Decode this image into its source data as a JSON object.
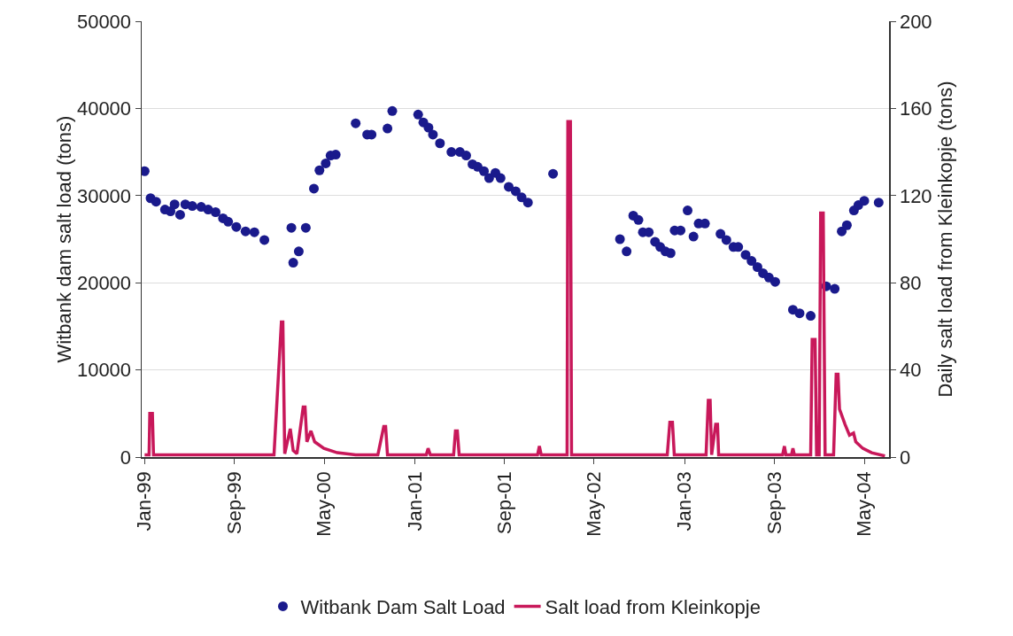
{
  "chart_data": {
    "type": "scatter",
    "ylabel": "Witbank dam salt load (tons)",
    "y2label": "Daily salt load from Kleinkopje (tons)",
    "xlim": [
      "1998-12-24",
      "2004-07-07"
    ],
    "xticks": [
      {
        "value": "1999-01-01",
        "label": "Jan-99"
      },
      {
        "value": "1999-09-01",
        "label": "Sep-99"
      },
      {
        "value": "2000-05-01",
        "label": "May-00"
      },
      {
        "value": "2001-01-01",
        "label": "Jan-01"
      },
      {
        "value": "2001-09-01",
        "label": "Sep-01"
      },
      {
        "value": "2002-05-01",
        "label": "May-02"
      },
      {
        "value": "2003-01-01",
        "label": "Jan-03"
      },
      {
        "value": "2003-09-01",
        "label": "Sep-03"
      },
      {
        "value": "2004-05-01",
        "label": "May-04"
      }
    ],
    "ylim": [
      0,
      50000
    ],
    "yticks": [
      0,
      10000,
      20000,
      30000,
      40000,
      50000
    ],
    "y2lim": [
      0,
      200
    ],
    "y2ticks": [
      0,
      40,
      80,
      120,
      160,
      200
    ],
    "grid": "y",
    "legend": "bottom",
    "series": [
      {
        "name": "Witbank Dam Salt Load",
        "marker": "circle",
        "color": "#1a1a8c",
        "x": [
          "1999-01-01",
          "1999-01-17",
          "1999-02-01",
          "1999-02-25",
          "1999-03-12",
          "1999-03-23",
          "1999-04-07",
          "1999-04-21",
          "1999-05-10",
          "1999-06-03",
          "1999-06-22",
          "1999-07-12",
          "1999-08-01",
          "1999-08-15",
          "1999-09-06",
          "1999-10-01",
          "1999-10-25",
          "1999-11-21",
          "2000-02-02",
          "2000-02-07",
          "2000-02-22",
          "2000-03-12",
          "2000-04-03",
          "2000-04-18",
          "2000-05-05",
          "2000-05-18",
          "2000-06-01",
          "2000-07-25",
          "2000-08-25",
          "2000-09-06",
          "2000-10-19",
          "2000-11-01",
          "2001-01-10",
          "2001-01-24",
          "2001-02-07",
          "2001-02-19",
          "2001-03-10",
          "2001-04-10",
          "2001-05-03",
          "2001-05-20",
          "2001-06-06",
          "2001-06-20",
          "2001-07-07",
          "2001-07-21",
          "2001-08-07",
          "2001-08-21",
          "2001-09-12",
          "2001-10-01",
          "2001-10-17",
          "2001-11-03",
          "2002-01-10",
          "2002-07-10",
          "2002-07-28",
          "2002-08-15",
          "2002-08-29",
          "2002-09-10",
          "2002-09-26",
          "2002-10-13",
          "2002-10-27",
          "2002-11-10",
          "2002-11-24",
          "2002-12-05",
          "2002-12-21",
          "2003-01-09",
          "2003-01-25",
          "2003-02-08",
          "2003-02-25",
          "2003-04-08",
          "2003-04-24",
          "2003-05-13",
          "2003-05-26",
          "2003-06-15",
          "2003-07-01",
          "2003-07-17",
          "2003-08-01",
          "2003-08-17",
          "2003-09-03",
          "2003-10-21",
          "2003-11-08",
          "2003-12-08",
          "2004-01-19",
          "2004-02-11",
          "2004-03-01",
          "2004-03-15",
          "2004-04-03",
          "2004-04-15",
          "2004-05-01",
          "2004-06-09"
        ],
        "values": [
          32800,
          29700,
          29300,
          28400,
          28200,
          29000,
          27800,
          29000,
          28800,
          28700,
          28400,
          28100,
          27400,
          27000,
          26400,
          25900,
          25800,
          24900,
          26300,
          22300,
          23600,
          26300,
          30800,
          32900,
          33700,
          34600,
          34700,
          38300,
          37000,
          37000,
          37700,
          39700,
          39300,
          38400,
          37800,
          37000,
          36000,
          35000,
          35000,
          34600,
          33600,
          33300,
          32800,
          32000,
          32600,
          32000,
          31000,
          30500,
          29800,
          29200,
          32500,
          25000,
          23600,
          27700,
          27200,
          25800,
          25800,
          24700,
          24100,
          23600,
          23400,
          26000,
          26000,
          28300,
          25300,
          26800,
          26800,
          25600,
          24900,
          24100,
          24100,
          23200,
          22500,
          21800,
          21100,
          20600,
          20100,
          16900,
          16500,
          16200,
          19600,
          19300,
          25900,
          26600,
          28300,
          28900,
          29400,
          29200
        ]
      },
      {
        "name": "Salt load from Kleinkopje",
        "type": "line",
        "axis": "y2",
        "line_style": "solid",
        "color": "#c8185a",
        "x": [
          "1999-01-01",
          "1999-01-13",
          "1999-01-15",
          "1999-01-22",
          "1999-01-25",
          "1999-12-17",
          "2000-01-06",
          "2000-01-10",
          "2000-01-15",
          "2000-01-30",
          "2000-02-07",
          "2000-02-17",
          "2000-03-05",
          "2000-03-10",
          "2000-03-15",
          "2000-03-26",
          "2000-04-05",
          "2000-04-30",
          "2000-06-05",
          "2000-07-25",
          "2000-09-23",
          "2000-10-09",
          "2000-10-14",
          "2000-10-19",
          "2001-02-01",
          "2001-02-06",
          "2001-02-12",
          "2001-04-16",
          "2001-04-21",
          "2001-04-26",
          "2001-05-01",
          "2001-11-29",
          "2001-12-04",
          "2001-12-09",
          "2002-02-17",
          "2002-02-19",
          "2002-02-26",
          "2002-03-01",
          "2002-11-15",
          "2002-11-22",
          "2002-11-29",
          "2002-12-04",
          "2003-02-28",
          "2003-03-06",
          "2003-03-11",
          "2003-03-15",
          "2003-03-26",
          "2003-03-31",
          "2003-04-03",
          "2003-09-23",
          "2003-09-28",
          "2003-10-02",
          "2003-10-17",
          "2003-10-21",
          "2003-10-25",
          "2003-12-08",
          "2003-12-12",
          "2003-12-20",
          "2003-12-24",
          "2003-12-31",
          "2004-01-04",
          "2004-01-11",
          "2004-01-16",
          "2004-02-08",
          "2004-02-15",
          "2004-02-20",
          "2004-02-24",
          "2004-03-10",
          "2004-03-22",
          "2004-04-02",
          "2004-04-08",
          "2004-04-27",
          "2004-05-21",
          "2004-06-26"
        ],
        "values": [
          1,
          1,
          20,
          20,
          1,
          1,
          62,
          62,
          1.5,
          13,
          3,
          1.5,
          23,
          23,
          7,
          12,
          7,
          4,
          2,
          1,
          1,
          14,
          14,
          1,
          1,
          4,
          1,
          1,
          12,
          12,
          1,
          1,
          5,
          1,
          1,
          154,
          154,
          1,
          1,
          16,
          16,
          1,
          1,
          26,
          26,
          1,
          15,
          15,
          1,
          1,
          5,
          1,
          1,
          4,
          1,
          1,
          54,
          54,
          1,
          1,
          112,
          112,
          1,
          1,
          38,
          38,
          22,
          15,
          10,
          11,
          7,
          4,
          2,
          0.5
        ]
      }
    ]
  }
}
